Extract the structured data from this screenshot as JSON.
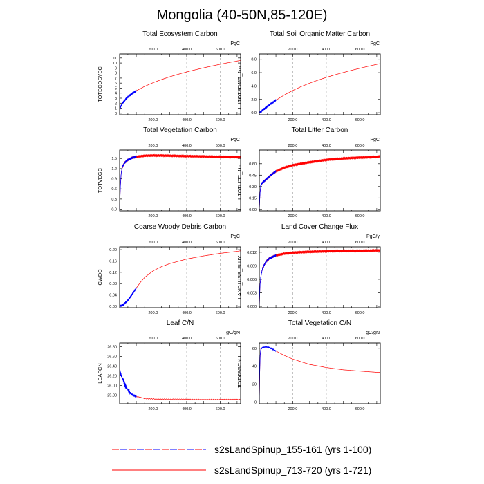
{
  "figure": {
    "title": "Mongolia (40-50N,85-120E)",
    "top_axis_ticks": [
      "200.0",
      "400.0",
      "600.0"
    ],
    "bottom_axis_ticks": [
      "200.0",
      "400.0",
      "600.0"
    ]
  },
  "legend": {
    "entries": [
      {
        "label": "s2sLandSpinup_155-161 (yrs 1-100)",
        "style": "dashed",
        "color": "#0000ff",
        "alt_color": "#ff0000"
      },
      {
        "label": "s2sLandSpinup_713-720 (yrs 1-721)",
        "style": "solid",
        "color": "#ff0000"
      }
    ]
  },
  "colors": {
    "blue_series": "#0000ff",
    "red_series": "#ff0000",
    "grid": "#9a9a9a"
  },
  "chart_data": [
    {
      "type": "line",
      "title": "Total Ecosystem Carbon",
      "ylabel": "TOTECOSYSC",
      "units": "PgC",
      "xlim": [
        1,
        721
      ],
      "ylim": [
        -0.3,
        11.8
      ],
      "yticks": [
        0,
        1,
        2,
        3,
        4,
        5,
        6,
        7,
        8,
        9,
        10,
        11
      ],
      "ytick_labels": [
        "0",
        "1",
        "2",
        "3",
        "4",
        "5",
        "6",
        "7",
        "8",
        "9",
        "10",
        "11"
      ],
      "vgrid": [
        200,
        400,
        600
      ],
      "model": "toteco",
      "x": [
        1,
        5,
        10,
        20,
        40,
        60,
        80,
        100,
        150,
        200,
        250,
        300,
        350,
        400,
        450,
        500,
        550,
        600,
        650,
        700,
        721
      ],
      "series": [
        {
          "name": "s2sLandSpinup_713-720 (yrs 1-721)",
          "color": "#ff0000",
          "values": [
            0,
            1.05,
            1.52,
            2.1,
            2.92,
            3.53,
            4.03,
            4.46,
            5.35,
            6.08,
            6.7,
            7.26,
            7.76,
            8.22,
            8.64,
            9.03,
            9.4,
            9.75,
            10.08,
            10.39,
            10.52
          ]
        }
      ]
    },
    {
      "type": "line",
      "title": "Total Soil Organic Matter Carbon",
      "ylabel": "TOTSOMC_1m",
      "units": "PgC",
      "xlim": [
        1,
        721
      ],
      "ylim": [
        -0.3,
        8.8
      ],
      "yticks": [
        0,
        2,
        4,
        6,
        8
      ],
      "ytick_labels": [
        "0.0",
        "2.0",
        "4.0",
        "6.0",
        "8.0"
      ],
      "vgrid": [
        200,
        400,
        600
      ],
      "model": "totsom",
      "x": [
        1,
        5,
        10,
        20,
        40,
        60,
        80,
        100,
        150,
        200,
        250,
        300,
        350,
        400,
        450,
        500,
        550,
        600,
        650,
        700,
        721
      ],
      "series": [
        {
          "name": "s2sLandSpinup_713-720 (yrs 1-721)",
          "color": "#ff0000",
          "values": [
            0,
            0.07,
            0.16,
            0.36,
            0.76,
            1.15,
            1.52,
            1.87,
            2.66,
            3.33,
            3.91,
            4.42,
            4.88,
            5.29,
            5.67,
            6.02,
            6.35,
            6.66,
            6.96,
            7.24,
            7.36
          ]
        }
      ]
    },
    {
      "type": "line",
      "title": "Total Vegetation Carbon",
      "ylabel": "TOTVEGC",
      "units": "PgC",
      "xlim": [
        1,
        721
      ],
      "ylim": [
        -0.05,
        1.75
      ],
      "yticks": [
        0,
        0.3,
        0.6,
        0.9,
        1.2,
        1.5
      ],
      "ytick_labels": [
        "0.0",
        "0.3",
        "0.6",
        "0.9",
        "1.2",
        "1.5"
      ],
      "vgrid": [
        200,
        400,
        600
      ],
      "model": "totveg",
      "x": [
        1,
        5,
        10,
        15,
        20,
        30,
        50,
        75,
        100,
        150,
        200,
        300,
        400,
        500,
        600,
        700,
        721
      ],
      "series": [
        {
          "name": "s2sLandSpinup_713-720 (yrs 1-721)",
          "color": "#ff0000",
          "values": [
            0,
            0.62,
            1.05,
            1.2,
            1.28,
            1.37,
            1.46,
            1.52,
            1.55,
            1.58,
            1.59,
            1.58,
            1.57,
            1.56,
            1.55,
            1.54,
            1.54
          ]
        }
      ]
    },
    {
      "type": "line",
      "title": "Total Litter Carbon",
      "ylabel": "TOTLITC_1m",
      "units": "PgC",
      "xlim": [
        1,
        721
      ],
      "ylim": [
        -0.02,
        0.78
      ],
      "yticks": [
        0,
        0.15,
        0.3,
        0.45,
        0.6
      ],
      "ytick_labels": [
        "0.00",
        "0.15",
        "0.30",
        "0.45",
        "0.60"
      ],
      "vgrid": [
        200,
        400,
        600
      ],
      "model": "totlit",
      "x": [
        1,
        5,
        10,
        20,
        30,
        50,
        75,
        100,
        150,
        200,
        300,
        400,
        500,
        600,
        700,
        721
      ],
      "series": [
        {
          "name": "s2sLandSpinup_713-720 (yrs 1-721)",
          "color": "#ff0000",
          "values": [
            0,
            0.2,
            0.32,
            0.35,
            0.37,
            0.41,
            0.46,
            0.5,
            0.55,
            0.58,
            0.62,
            0.65,
            0.67,
            0.68,
            0.69,
            0.7
          ]
        }
      ]
    },
    {
      "type": "line",
      "title": "Coarse Woody Debris Carbon",
      "ylabel": "CWDC",
      "units": "PgC",
      "xlim": [
        1,
        721
      ],
      "ylim": [
        -0.005,
        0.21
      ],
      "yticks": [
        0,
        0.04,
        0.08,
        0.12,
        0.16,
        0.2
      ],
      "ytick_labels": [
        "0.00",
        "0.04",
        "0.08",
        "0.12",
        "0.16",
        "0.20"
      ],
      "vgrid": [
        200,
        400,
        600
      ],
      "model": "cwd",
      "x": [
        1,
        10,
        25,
        50,
        75,
        100,
        125,
        150,
        200,
        250,
        300,
        400,
        500,
        600,
        700,
        721
      ],
      "series": [
        {
          "name": "s2sLandSpinup_713-720 (yrs 1-721)",
          "color": "#ff0000",
          "values": [
            0,
            0.002,
            0.007,
            0.021,
            0.042,
            0.064,
            0.085,
            0.102,
            0.125,
            0.14,
            0.151,
            0.167,
            0.178,
            0.187,
            0.194,
            0.196
          ]
        }
      ]
    },
    {
      "type": "line",
      "title": "Land Cover Change Flux",
      "ylabel": "LAND_USE_FLUX",
      "units": "PgC/y",
      "xlim": [
        1,
        721
      ],
      "ylim": [
        -0.0003,
        0.0132
      ],
      "yticks": [
        0,
        0.003,
        0.006,
        0.009,
        0.012
      ],
      "ytick_labels": [
        "0.000",
        "0.003",
        "0.006",
        "0.009",
        "0.012"
      ],
      "vgrid": [
        200,
        400,
        600
      ],
      "model": "luflux",
      "x": [
        1,
        5,
        10,
        20,
        40,
        60,
        80,
        100,
        150,
        200,
        300,
        400,
        500,
        600,
        700,
        721
      ],
      "series": [
        {
          "name": "s2sLandSpinup_713-720 (yrs 1-721)",
          "color": "#ff0000",
          "values": [
            0,
            0.0045,
            0.0066,
            0.0084,
            0.0099,
            0.0106,
            0.011,
            0.0113,
            0.0117,
            0.0119,
            0.0121,
            0.0122,
            0.0123,
            0.0123,
            0.0124,
            0.0124
          ]
        }
      ]
    },
    {
      "type": "line",
      "title": "Leaf C/N",
      "ylabel": "LEAFCN",
      "units": "gC/gN",
      "xlim": [
        1,
        721
      ],
      "ylim": [
        25.62,
        26.88
      ],
      "yticks": [
        25.8,
        26,
        26.2,
        26.4,
        26.6,
        26.8
      ],
      "ytick_labels": [
        "25.80",
        "26.00",
        "26.20",
        "26.40",
        "26.60",
        "26.80"
      ],
      "vgrid": [
        200,
        400,
        600
      ],
      "model": "leafcn",
      "x": [
        1,
        5,
        10,
        20,
        30,
        40,
        50,
        60,
        75,
        100,
        150,
        200,
        300,
        400,
        500,
        600,
        700,
        721
      ],
      "series": [
        {
          "name": "s2sLandSpinup_713-720 (yrs 1-721)",
          "color": "#ff0000",
          "values": [
            26.3,
            26.27,
            26.22,
            26.13,
            26.04,
            25.97,
            25.91,
            25.86,
            25.81,
            25.77,
            25.73,
            25.72,
            25.715,
            25.712,
            25.71,
            25.71,
            25.71,
            25.71
          ]
        }
      ]
    },
    {
      "type": "line",
      "title": "Total Vegetation C/N",
      "ylabel": "TOTVEGCN",
      "units": "gC/gN",
      "xlim": [
        1,
        721
      ],
      "ylim": [
        -2,
        66
      ],
      "yticks": [
        0,
        20,
        40,
        60
      ],
      "ytick_labels": [
        "0",
        "20",
        "40",
        "60"
      ],
      "vgrid": [
        200,
        400,
        600
      ],
      "model": "totvegcn",
      "x": [
        1,
        3,
        6,
        10,
        20,
        40,
        60,
        80,
        100,
        150,
        200,
        300,
        400,
        500,
        600,
        700,
        721
      ],
      "series": [
        {
          "name": "s2sLandSpinup_713-720 (yrs 1-721)",
          "color": "#ff0000",
          "values": [
            0,
            30,
            52,
            59,
            61,
            61.5,
            61,
            59,
            57,
            52,
            48,
            42,
            38.5,
            36,
            34.5,
            33.2,
            33
          ]
        }
      ]
    }
  ]
}
